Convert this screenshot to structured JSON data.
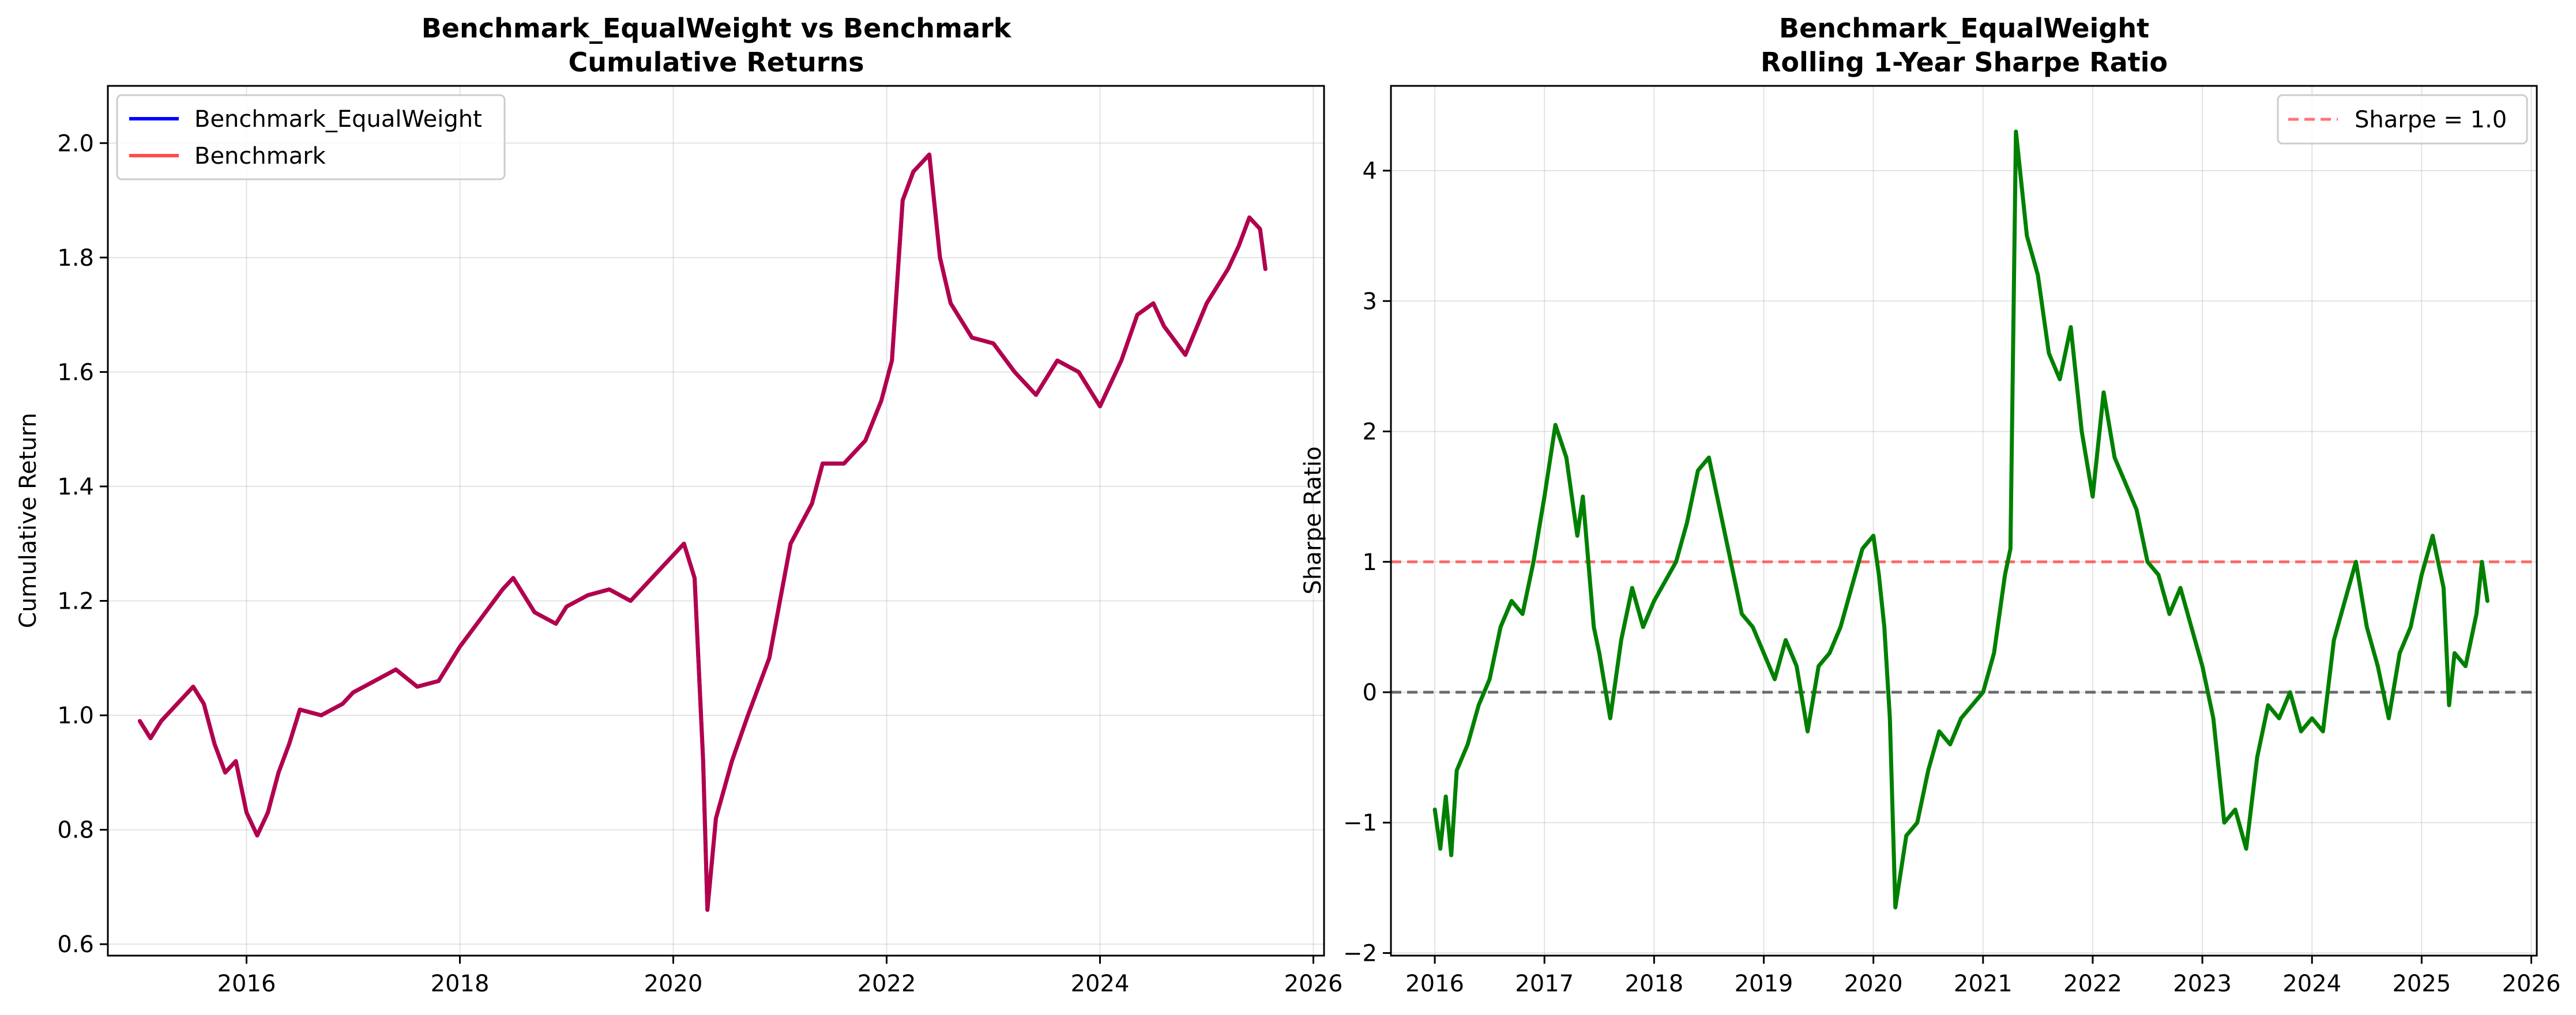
{
  "chart_data": [
    {
      "type": "line",
      "title": "Benchmark_EqualWeight vs Benchmark",
      "subtitle": "Cumulative Returns",
      "xlabel": "",
      "ylabel": "Cumulative Return",
      "xlim": [
        2014.7,
        2026.1
      ],
      "ylim": [
        0.58,
        2.1
      ],
      "xticks": [
        2016,
        2018,
        2020,
        2022,
        2024,
        2026
      ],
      "yticks": [
        0.6,
        0.8,
        1.0,
        1.2,
        1.4,
        1.6,
        1.8,
        2.0
      ],
      "grid": true,
      "legend": "upper-left",
      "series": [
        {
          "name": "Benchmark_EqualWeight",
          "color": "#0000ff",
          "points": [
            [
              2015.0,
              0.99
            ],
            [
              2015.1,
              0.96
            ],
            [
              2015.2,
              0.99
            ],
            [
              2015.35,
              1.02
            ],
            [
              2015.5,
              1.05
            ],
            [
              2015.6,
              1.02
            ],
            [
              2015.7,
              0.95
            ],
            [
              2015.8,
              0.9
            ],
            [
              2015.9,
              0.92
            ],
            [
              2016.0,
              0.83
            ],
            [
              2016.1,
              0.79
            ],
            [
              2016.2,
              0.83
            ],
            [
              2016.3,
              0.9
            ],
            [
              2016.4,
              0.95
            ],
            [
              2016.5,
              1.01
            ],
            [
              2016.7,
              1.0
            ],
            [
              2016.9,
              1.02
            ],
            [
              2017.0,
              1.04
            ],
            [
              2017.2,
              1.06
            ],
            [
              2017.4,
              1.08
            ],
            [
              2017.6,
              1.05
            ],
            [
              2017.8,
              1.06
            ],
            [
              2018.0,
              1.12
            ],
            [
              2018.2,
              1.17
            ],
            [
              2018.4,
              1.22
            ],
            [
              2018.5,
              1.24
            ],
            [
              2018.7,
              1.18
            ],
            [
              2018.9,
              1.16
            ],
            [
              2019.0,
              1.19
            ],
            [
              2019.2,
              1.21
            ],
            [
              2019.4,
              1.22
            ],
            [
              2019.6,
              1.2
            ],
            [
              2019.8,
              1.24
            ],
            [
              2020.0,
              1.28
            ],
            [
              2020.1,
              1.3
            ],
            [
              2020.2,
              1.24
            ],
            [
              2020.28,
              0.92
            ],
            [
              2020.32,
              0.66
            ],
            [
              2020.4,
              0.82
            ],
            [
              2020.55,
              0.92
            ],
            [
              2020.7,
              1.0
            ],
            [
              2020.9,
              1.1
            ],
            [
              2021.0,
              1.2
            ],
            [
              2021.1,
              1.3
            ],
            [
              2021.3,
              1.37
            ],
            [
              2021.4,
              1.44
            ],
            [
              2021.6,
              1.44
            ],
            [
              2021.8,
              1.48
            ],
            [
              2021.95,
              1.55
            ],
            [
              2022.05,
              1.62
            ],
            [
              2022.15,
              1.9
            ],
            [
              2022.25,
              1.95
            ],
            [
              2022.4,
              1.98
            ],
            [
              2022.5,
              1.8
            ],
            [
              2022.6,
              1.72
            ],
            [
              2022.8,
              1.66
            ],
            [
              2023.0,
              1.65
            ],
            [
              2023.2,
              1.6
            ],
            [
              2023.4,
              1.56
            ],
            [
              2023.6,
              1.62
            ],
            [
              2023.8,
              1.6
            ],
            [
              2024.0,
              1.54
            ],
            [
              2024.2,
              1.62
            ],
            [
              2024.35,
              1.7
            ],
            [
              2024.5,
              1.72
            ],
            [
              2024.6,
              1.68
            ],
            [
              2024.8,
              1.63
            ],
            [
              2025.0,
              1.72
            ],
            [
              2025.2,
              1.78
            ],
            [
              2025.3,
              1.82
            ],
            [
              2025.4,
              1.87
            ],
            [
              2025.5,
              1.85
            ],
            [
              2025.55,
              1.78
            ]
          ]
        },
        {
          "name": "Benchmark",
          "color": "#ff0000",
          "points": [
            [
              2015.0,
              0.99
            ],
            [
              2015.1,
              0.96
            ],
            [
              2015.2,
              0.99
            ],
            [
              2015.35,
              1.02
            ],
            [
              2015.5,
              1.05
            ],
            [
              2015.6,
              1.02
            ],
            [
              2015.7,
              0.95
            ],
            [
              2015.8,
              0.9
            ],
            [
              2015.9,
              0.92
            ],
            [
              2016.0,
              0.83
            ],
            [
              2016.1,
              0.79
            ],
            [
              2016.2,
              0.83
            ],
            [
              2016.3,
              0.9
            ],
            [
              2016.4,
              0.95
            ],
            [
              2016.5,
              1.01
            ],
            [
              2016.7,
              1.0
            ],
            [
              2016.9,
              1.02
            ],
            [
              2017.0,
              1.04
            ],
            [
              2017.2,
              1.06
            ],
            [
              2017.4,
              1.08
            ],
            [
              2017.6,
              1.05
            ],
            [
              2017.8,
              1.06
            ],
            [
              2018.0,
              1.12
            ],
            [
              2018.2,
              1.17
            ],
            [
              2018.4,
              1.22
            ],
            [
              2018.5,
              1.24
            ],
            [
              2018.7,
              1.18
            ],
            [
              2018.9,
              1.16
            ],
            [
              2019.0,
              1.19
            ],
            [
              2019.2,
              1.21
            ],
            [
              2019.4,
              1.22
            ],
            [
              2019.6,
              1.2
            ],
            [
              2019.8,
              1.24
            ],
            [
              2020.0,
              1.28
            ],
            [
              2020.1,
              1.3
            ],
            [
              2020.2,
              1.24
            ],
            [
              2020.28,
              0.92
            ],
            [
              2020.32,
              0.66
            ],
            [
              2020.4,
              0.82
            ],
            [
              2020.55,
              0.92
            ],
            [
              2020.7,
              1.0
            ],
            [
              2020.9,
              1.1
            ],
            [
              2021.0,
              1.2
            ],
            [
              2021.1,
              1.3
            ],
            [
              2021.3,
              1.37
            ],
            [
              2021.4,
              1.44
            ],
            [
              2021.6,
              1.44
            ],
            [
              2021.8,
              1.48
            ],
            [
              2021.95,
              1.55
            ],
            [
              2022.05,
              1.62
            ],
            [
              2022.15,
              1.9
            ],
            [
              2022.25,
              1.95
            ],
            [
              2022.4,
              1.98
            ],
            [
              2022.5,
              1.8
            ],
            [
              2022.6,
              1.72
            ],
            [
              2022.8,
              1.66
            ],
            [
              2023.0,
              1.65
            ],
            [
              2023.2,
              1.6
            ],
            [
              2023.4,
              1.56
            ],
            [
              2023.6,
              1.62
            ],
            [
              2023.8,
              1.6
            ],
            [
              2024.0,
              1.54
            ],
            [
              2024.2,
              1.62
            ],
            [
              2024.35,
              1.7
            ],
            [
              2024.5,
              1.72
            ],
            [
              2024.6,
              1.68
            ],
            [
              2024.8,
              1.63
            ],
            [
              2025.0,
              1.72
            ],
            [
              2025.2,
              1.78
            ],
            [
              2025.3,
              1.82
            ],
            [
              2025.4,
              1.87
            ],
            [
              2025.5,
              1.85
            ],
            [
              2025.55,
              1.78
            ]
          ]
        }
      ],
      "visible_overlap_color": "#b2074b"
    },
    {
      "type": "line",
      "title": "Benchmark_EqualWeight",
      "subtitle": "Rolling 1-Year Sharpe Ratio",
      "xlabel": "",
      "ylabel": "Sharpe Ratio",
      "xlim": [
        2015.6,
        2026.05
      ],
      "ylim": [
        -2.02,
        4.65
      ],
      "xticks": [
        2016,
        2017,
        2018,
        2019,
        2020,
        2021,
        2022,
        2023,
        2024,
        2025,
        2026
      ],
      "yticks": [
        -2,
        -1,
        0,
        1,
        2,
        3,
        4
      ],
      "grid": true,
      "legend": "upper-right",
      "series": [
        {
          "name": "",
          "color": "#008000",
          "points": [
            [
              2016.0,
              -0.9
            ],
            [
              2016.05,
              -1.2
            ],
            [
              2016.1,
              -0.8
            ],
            [
              2016.15,
              -1.25
            ],
            [
              2016.2,
              -0.6
            ],
            [
              2016.3,
              -0.4
            ],
            [
              2016.4,
              -0.1
            ],
            [
              2016.5,
              0.1
            ],
            [
              2016.6,
              0.5
            ],
            [
              2016.7,
              0.7
            ],
            [
              2016.8,
              0.6
            ],
            [
              2016.9,
              1.0
            ],
            [
              2017.0,
              1.5
            ],
            [
              2017.1,
              2.05
            ],
            [
              2017.2,
              1.8
            ],
            [
              2017.3,
              1.2
            ],
            [
              2017.35,
              1.5
            ],
            [
              2017.45,
              0.5
            ],
            [
              2017.5,
              0.3
            ],
            [
              2017.6,
              -0.2
            ],
            [
              2017.7,
              0.4
            ],
            [
              2017.8,
              0.8
            ],
            [
              2017.9,
              0.5
            ],
            [
              2018.0,
              0.7
            ],
            [
              2018.1,
              0.85
            ],
            [
              2018.2,
              1.0
            ],
            [
              2018.3,
              1.3
            ],
            [
              2018.4,
              1.7
            ],
            [
              2018.5,
              1.8
            ],
            [
              2018.6,
              1.4
            ],
            [
              2018.7,
              1.0
            ],
            [
              2018.8,
              0.6
            ],
            [
              2018.9,
              0.5
            ],
            [
              2019.0,
              0.3
            ],
            [
              2019.1,
              0.1
            ],
            [
              2019.2,
              0.4
            ],
            [
              2019.3,
              0.2
            ],
            [
              2019.4,
              -0.3
            ],
            [
              2019.5,
              0.2
            ],
            [
              2019.6,
              0.3
            ],
            [
              2019.7,
              0.5
            ],
            [
              2019.8,
              0.8
            ],
            [
              2019.9,
              1.1
            ],
            [
              2020.0,
              1.2
            ],
            [
              2020.05,
              0.9
            ],
            [
              2020.1,
              0.5
            ],
            [
              2020.15,
              -0.2
            ],
            [
              2020.2,
              -1.65
            ],
            [
              2020.3,
              -1.1
            ],
            [
              2020.4,
              -1.0
            ],
            [
              2020.5,
              -0.6
            ],
            [
              2020.6,
              -0.3
            ],
            [
              2020.7,
              -0.4
            ],
            [
              2020.8,
              -0.2
            ],
            [
              2020.9,
              -0.1
            ],
            [
              2021.0,
              0.0
            ],
            [
              2021.1,
              0.3
            ],
            [
              2021.2,
              0.9
            ],
            [
              2021.25,
              1.1
            ],
            [
              2021.3,
              4.3
            ],
            [
              2021.4,
              3.5
            ],
            [
              2021.5,
              3.2
            ],
            [
              2021.6,
              2.6
            ],
            [
              2021.7,
              2.4
            ],
            [
              2021.8,
              2.8
            ],
            [
              2021.9,
              2.0
            ],
            [
              2022.0,
              1.5
            ],
            [
              2022.1,
              2.3
            ],
            [
              2022.2,
              1.8
            ],
            [
              2022.3,
              1.6
            ],
            [
              2022.4,
              1.4
            ],
            [
              2022.5,
              1.0
            ],
            [
              2022.6,
              0.9
            ],
            [
              2022.7,
              0.6
            ],
            [
              2022.8,
              0.8
            ],
            [
              2022.9,
              0.5
            ],
            [
              2023.0,
              0.2
            ],
            [
              2023.1,
              -0.2
            ],
            [
              2023.2,
              -1.0
            ],
            [
              2023.3,
              -0.9
            ],
            [
              2023.4,
              -1.2
            ],
            [
              2023.5,
              -0.5
            ],
            [
              2023.6,
              -0.1
            ],
            [
              2023.7,
              -0.2
            ],
            [
              2023.8,
              0.0
            ],
            [
              2023.9,
              -0.3
            ],
            [
              2024.0,
              -0.2
            ],
            [
              2024.1,
              -0.3
            ],
            [
              2024.2,
              0.4
            ],
            [
              2024.3,
              0.7
            ],
            [
              2024.4,
              1.0
            ],
            [
              2024.5,
              0.5
            ],
            [
              2024.6,
              0.2
            ],
            [
              2024.7,
              -0.2
            ],
            [
              2024.8,
              0.3
            ],
            [
              2024.9,
              0.5
            ],
            [
              2025.0,
              0.9
            ],
            [
              2025.1,
              1.2
            ],
            [
              2025.2,
              0.8
            ],
            [
              2025.25,
              -0.1
            ],
            [
              2025.3,
              0.3
            ],
            [
              2025.4,
              0.2
            ],
            [
              2025.5,
              0.6
            ],
            [
              2025.55,
              1.0
            ],
            [
              2025.6,
              0.7
            ]
          ]
        }
      ],
      "reference_lines": [
        {
          "name": "Sharpe = 1.0",
          "y": 1.0,
          "color": "#ff0000",
          "dash": true,
          "in_legend": true
        },
        {
          "name": "",
          "y": 0.0,
          "color": "#000000",
          "dash": true,
          "in_legend": false
        }
      ]
    }
  ]
}
